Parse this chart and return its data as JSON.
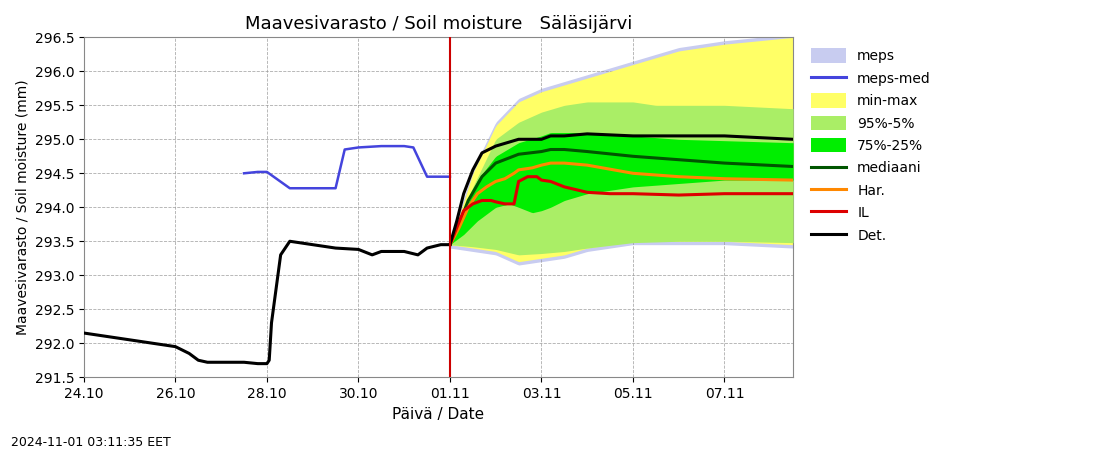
{
  "title": "Maavesivarasto / Soil moisture   Säläsijärvi",
  "xlabel": "Päivä / Date",
  "ylabel": "Maavesivarasto / Soil moisture (mm)",
  "timestamp_label": "2024-11-01 03:11:35 EET",
  "ylim": [
    291.5,
    296.5
  ],
  "colors": {
    "meps_fill": "#c8ccf0",
    "min_max_fill": "#ffff66",
    "pct95_5_fill": "#aaee66",
    "pct75_25_fill": "#00ee00",
    "mediaani": "#005500",
    "har": "#ff8800",
    "il": "#dd0000",
    "det": "#000000",
    "meps_med": "#4444dd",
    "vline": "#cc0000"
  },
  "background_color": "#ffffff",
  "grid_color": "#999999",
  "xtick_labels": [
    "24.10",
    "26.10",
    "28.10",
    "30.10",
    "01.11",
    "03.11",
    "05.11",
    "07.11"
  ],
  "xtick_pos": [
    0,
    2,
    4,
    6,
    8,
    10,
    12,
    14
  ],
  "yticks": [
    291.5,
    292.0,
    292.5,
    293.0,
    293.5,
    294.0,
    294.5,
    295.0,
    295.5,
    296.0,
    296.5
  ],
  "xlim": [
    0,
    15.5
  ],
  "now_x": 8.0
}
